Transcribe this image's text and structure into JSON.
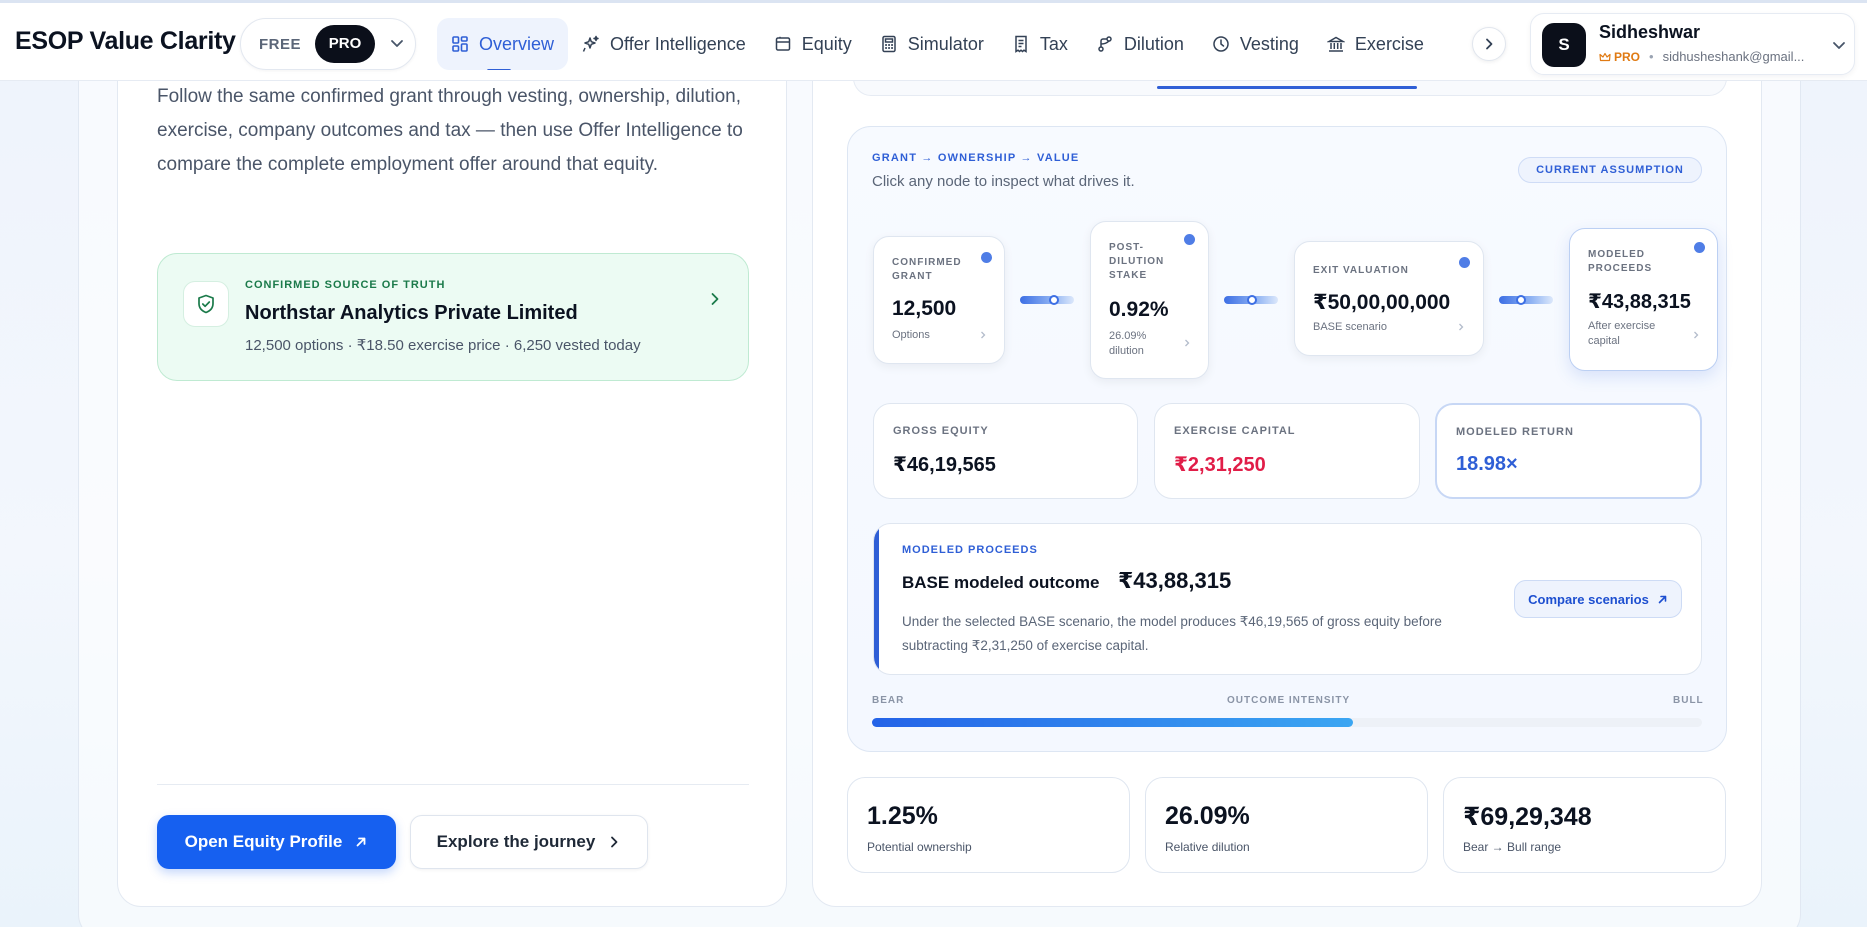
{
  "app": {
    "title": "ESOP Value Clarity"
  },
  "plan": {
    "free_label": "FREE",
    "pro_label": "PRO"
  },
  "nav": {
    "tabs": [
      {
        "label": "Overview",
        "icon": "grid-icon"
      },
      {
        "label": "Offer Intelligence",
        "icon": "sparkle-icon"
      },
      {
        "label": "Equity",
        "icon": "wallet-icon"
      },
      {
        "label": "Simulator",
        "icon": "calculator-icon"
      },
      {
        "label": "Tax",
        "icon": "receipt-icon"
      },
      {
        "label": "Dilution",
        "icon": "branch-icon"
      },
      {
        "label": "Vesting",
        "icon": "clock-icon"
      },
      {
        "label": "Exercise",
        "icon": "bank-icon"
      }
    ]
  },
  "user": {
    "initial": "S",
    "name": "Sidheshwar",
    "badge": "PRO",
    "email": "sidhusheshank@gmail..."
  },
  "intro": {
    "text": "Follow the same confirmed grant through vesting, ownership, dilution, exercise, company outcomes and tax — then use Offer Intelligence to compare the complete employment offer around that equity."
  },
  "source_of_truth": {
    "eyebrow": "CONFIRMED SOURCE OF TRUTH",
    "company": "Northstar Analytics Private Limited",
    "summary": "12,500 options · ₹18.50 exercise price · 6,250 vested today"
  },
  "actions": {
    "primary": "Open Equity Profile",
    "secondary": "Explore the journey"
  },
  "flow": {
    "eyebrow": "GRANT → OWNERSHIP → VALUE",
    "hint": "Click any node to inspect what drives it.",
    "assumption": "CURRENT ASSUMPTION",
    "nodes": [
      {
        "label": "CONFIRMED GRANT",
        "value": "12,500",
        "sub": "Options"
      },
      {
        "label": "POST-DILUTION STAKE",
        "value": "0.92%",
        "sub": "26.09% dilution"
      },
      {
        "label": "EXIT VALUATION",
        "value": "₹50,00,00,000",
        "sub": "BASE scenario"
      },
      {
        "label": "MODELED PROCEEDS",
        "value": "₹43,88,315",
        "sub": "After exercise capital"
      }
    ]
  },
  "metrics": [
    {
      "label": "GROSS EQUITY",
      "value": "₹46,19,565",
      "color": "#0b1220"
    },
    {
      "label": "EXERCISE CAPITAL",
      "value": "₹2,31,250",
      "color": "#e11d48"
    },
    {
      "label": "MODELED RETURN",
      "value": "18.98×",
      "color": "#2f5fd6"
    }
  ],
  "proceeds": {
    "eyebrow": "MODELED PROCEEDS",
    "title": "BASE modeled outcome",
    "amount": "₹43,88,315",
    "description": "Under the selected BASE scenario, the model produces ₹46,19,565 of gross equity before subtracting ₹2,31,250 of exercise capital.",
    "button": "Compare scenarios"
  },
  "intensity": {
    "left": "BEAR",
    "center": "OUTCOME INTENSITY",
    "right": "BULL",
    "level": 0.58
  },
  "stats": [
    {
      "value": "1.25%",
      "label": "Potential ownership"
    },
    {
      "value": "26.09%",
      "label": "Relative dilution"
    },
    {
      "value": "₹69,29,348",
      "label": "Bear → Bull range"
    }
  ],
  "colors": {
    "accent": "#2f5fd6",
    "primary_button": "#1660f0",
    "negative": "#e11d48",
    "success_card": "#ecfbf3"
  }
}
